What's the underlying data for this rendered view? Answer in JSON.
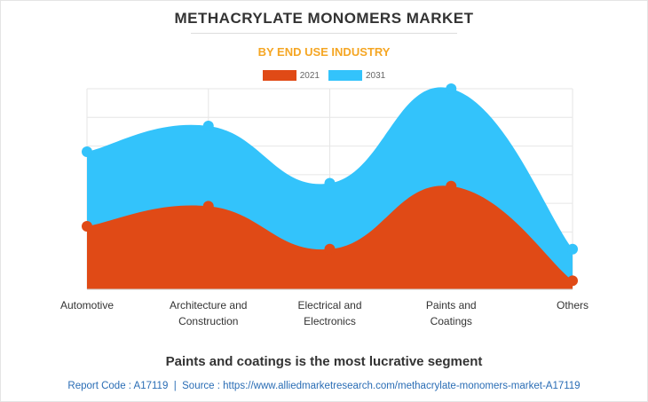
{
  "title": "METHACRYLATE MONOMERS MARKET",
  "subtitle": "BY END USE INDUSTRY",
  "note": "Paints and coatings is the most lucrative segment",
  "footer": {
    "report_code": "Report Code : A17119",
    "separator": "|",
    "source": "Source : https://www.alliedmarketresearch.com/methacrylate-monomers-market-A17119"
  },
  "colors": {
    "series_2021": "#e04a16",
    "series_2031": "#33c3fb",
    "grid": "#e6e6e6",
    "subtitle": "#f5a623",
    "footer": "#2a6db5"
  },
  "chart_data": {
    "type": "area",
    "categories": [
      [
        "Automotive"
      ],
      [
        "Architecture and",
        "Construction"
      ],
      [
        "Electrical and",
        "Electronics"
      ],
      [
        "Paints and",
        "Coatings"
      ],
      [
        "Others"
      ]
    ],
    "series": [
      {
        "name": "2021",
        "values": [
          22,
          29,
          14,
          36,
          3
        ]
      },
      {
        "name": "2031",
        "values": [
          48,
          57,
          37,
          70,
          14
        ]
      }
    ],
    "ylim": [
      0,
      70
    ],
    "grid": true,
    "legend": "top-center"
  }
}
